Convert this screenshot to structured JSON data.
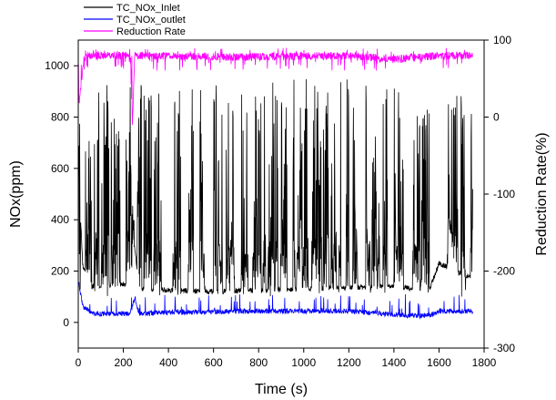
{
  "chart_data": {
    "type": "line",
    "xlabel": "Time (s)",
    "ylabel": "NOx(ppm)",
    "ylabel_right": "Reduction Rate(%)",
    "xlim": [
      0,
      1800
    ],
    "ylim": [
      -100,
      1100
    ],
    "ylim_right": [
      -300,
      100
    ],
    "x_ticks": [
      0,
      200,
      400,
      600,
      800,
      1000,
      1200,
      1400,
      1600,
      1800
    ],
    "y_ticks": [
      0,
      200,
      400,
      600,
      800,
      1000
    ],
    "y_ticks_right": [
      -300,
      -200,
      -100,
      0,
      100
    ],
    "legend_position": "top-left",
    "grid": false,
    "series": [
      {
        "name": "TC_NOx_Inlet",
        "color": "#000000",
        "axis": "left",
        "baseline": [
          [
            0,
            600
          ],
          [
            20,
            220
          ],
          [
            60,
            140
          ],
          [
            230,
            150
          ],
          [
            250,
            300
          ],
          [
            270,
            130
          ],
          [
            600,
            120
          ],
          [
            1000,
            130
          ],
          [
            1400,
            140
          ],
          [
            1500,
            130
          ],
          [
            1560,
            135
          ],
          [
            1600,
            230
          ],
          [
            1750,
            170
          ]
        ],
        "spike_range": [
          100,
          950
        ]
      },
      {
        "name": "TC_NOx_outlet",
        "color": "#0000ff",
        "axis": "left",
        "baseline": [
          [
            0,
            160
          ],
          [
            20,
            60
          ],
          [
            60,
            30
          ],
          [
            230,
            30
          ],
          [
            250,
            90
          ],
          [
            270,
            30
          ],
          [
            400,
            35
          ],
          [
            800,
            40
          ],
          [
            1200,
            40
          ],
          [
            1500,
            20
          ],
          [
            1560,
            25
          ],
          [
            1600,
            40
          ],
          [
            1750,
            40
          ]
        ],
        "spike_range": [
          40,
          110
        ]
      },
      {
        "name": "Reduction Rate",
        "color": "#ff00ff",
        "axis": "right",
        "baseline": [
          [
            0,
            10
          ],
          [
            15,
            50
          ],
          [
            25,
            75
          ],
          [
            40,
            80
          ],
          [
            230,
            80
          ],
          [
            240,
            -10
          ],
          [
            250,
            80
          ],
          [
            700,
            78
          ],
          [
            1200,
            80
          ],
          [
            1400,
            75
          ],
          [
            1600,
            80
          ],
          [
            1750,
            80
          ]
        ],
        "spike_range": [
          60,
          90
        ]
      }
    ]
  }
}
